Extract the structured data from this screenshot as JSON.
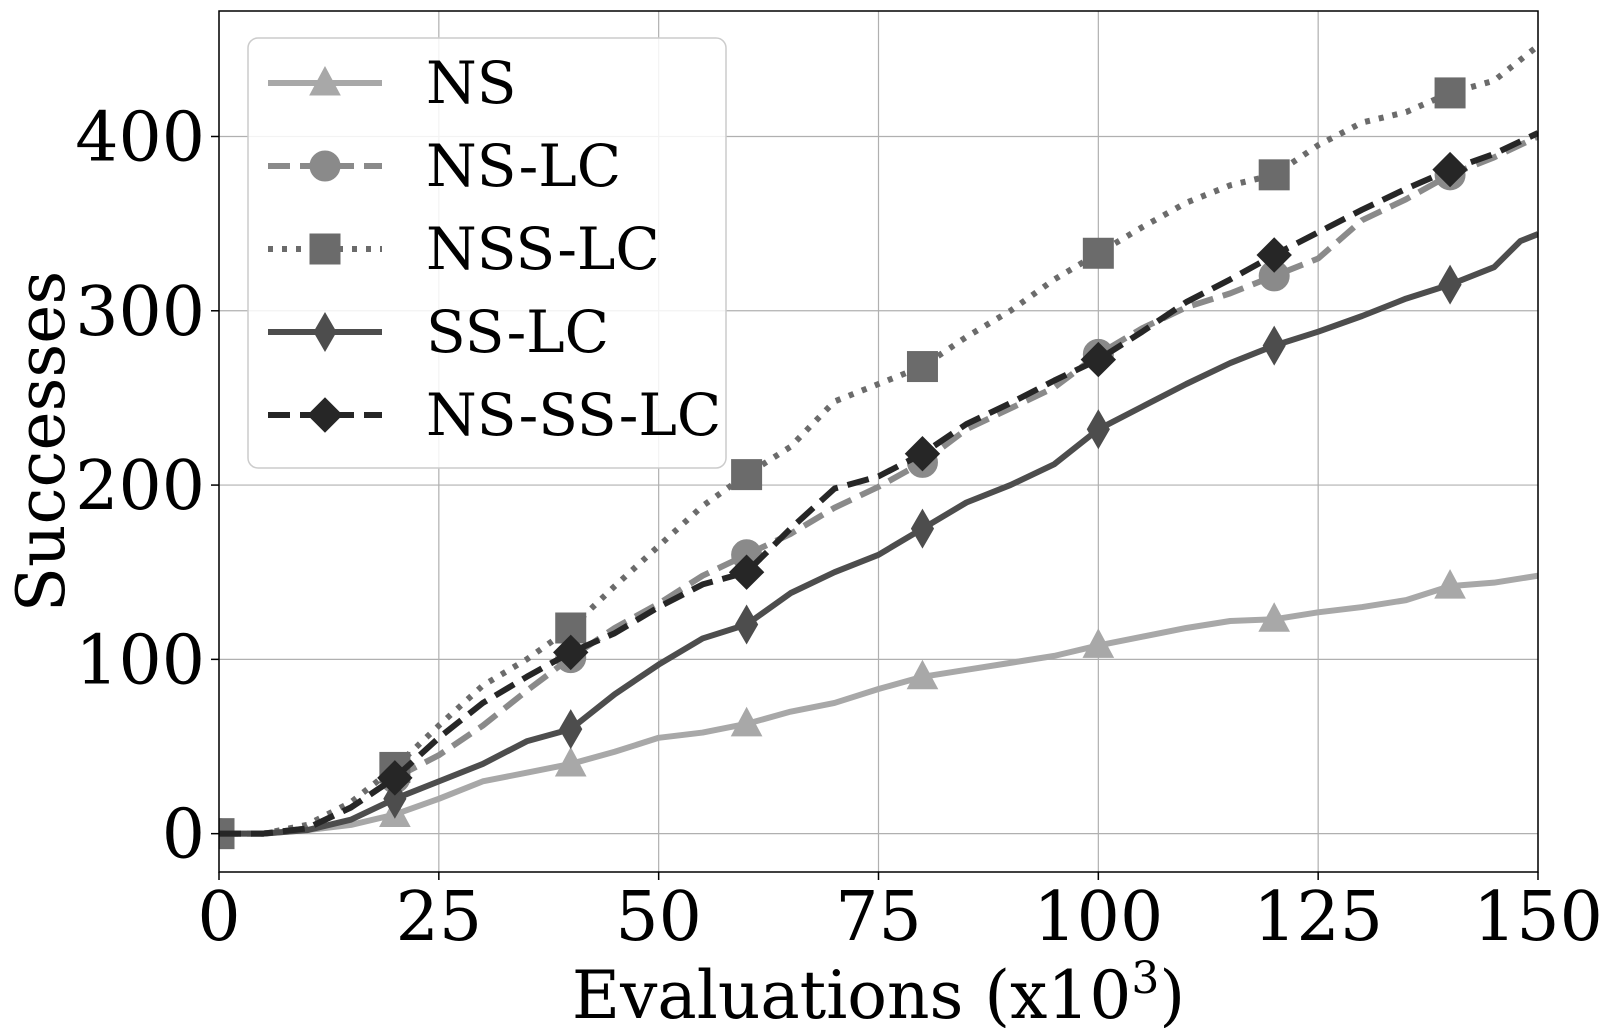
{
  "chart_data": {
    "type": "line",
    "xlabel": "Evaluations (x",
    "xlabel_base": "10",
    "xlabel_exp": "3",
    "xlabel_close": ")",
    "ylabel": "Successes",
    "xlim": [
      0,
      150
    ],
    "ylim": [
      -22,
      472
    ],
    "xticks": [
      "0",
      "25",
      "50",
      "75",
      "100",
      "125",
      "150"
    ],
    "yticks": [
      "0",
      "100",
      "200",
      "300",
      "400"
    ],
    "grid": true,
    "legend_position": "top-left",
    "series": [
      {
        "name": "NS",
        "color": "#a8a8a8",
        "dash": "solid",
        "marker": "triangle",
        "x": [
          0,
          5,
          10,
          15,
          20,
          25,
          30,
          35,
          40,
          45,
          50,
          55,
          60,
          65,
          70,
          75,
          80,
          85,
          90,
          95,
          100,
          105,
          110,
          115,
          120,
          125,
          130,
          135,
          140,
          145,
          150
        ],
        "y": [
          0,
          0,
          2,
          5,
          11,
          20,
          30,
          35,
          40,
          47,
          55,
          58,
          63,
          70,
          75,
          83,
          90,
          94,
          98,
          102,
          108,
          113,
          118,
          122,
          123,
          127,
          130,
          134,
          142,
          144,
          148
        ],
        "markers_x": [
          20,
          40,
          60,
          80,
          100,
          120,
          140
        ],
        "markers_y": [
          11,
          40,
          63,
          90,
          108,
          123,
          142
        ]
      },
      {
        "name": "NS-LC",
        "color": "#8a8a8a",
        "dash": "dashed",
        "marker": "circle",
        "x": [
          0,
          5,
          10,
          15,
          20,
          25,
          30,
          35,
          40,
          45,
          50,
          55,
          60,
          65,
          70,
          75,
          80,
          85,
          90,
          95,
          100,
          105,
          110,
          115,
          120,
          125,
          130,
          135,
          140,
          145,
          150
        ],
        "y": [
          0,
          0,
          3,
          15,
          32,
          45,
          62,
          82,
          101,
          118,
          132,
          148,
          160,
          172,
          187,
          199,
          213,
          232,
          244,
          256,
          275,
          290,
          302,
          310,
          320,
          330,
          352,
          364,
          378,
          388,
          400
        ],
        "markers_x": [
          0,
          20,
          40,
          60,
          80,
          100,
          120,
          140
        ],
        "markers_y": [
          0,
          32,
          101,
          160,
          213,
          275,
          320,
          378
        ]
      },
      {
        "name": "NSS-LC",
        "color": "#6b6b6b",
        "dash": "dotted",
        "marker": "square",
        "x": [
          0,
          5,
          10,
          15,
          20,
          25,
          30,
          35,
          40,
          45,
          50,
          55,
          60,
          65,
          70,
          75,
          80,
          85,
          90,
          95,
          100,
          105,
          110,
          115,
          120,
          125,
          130,
          135,
          140,
          145,
          150
        ],
        "y": [
          0,
          0,
          5,
          18,
          38,
          62,
          85,
          100,
          118,
          142,
          165,
          188,
          206,
          222,
          248,
          258,
          268,
          285,
          300,
          318,
          333,
          348,
          362,
          372,
          378,
          395,
          408,
          414,
          425,
          432,
          452
        ],
        "markers_x": [
          0,
          20,
          40,
          60,
          80,
          100,
          120,
          140
        ],
        "markers_y": [
          0,
          38,
          118,
          206,
          268,
          333,
          378,
          425
        ]
      },
      {
        "name": "SS-LC",
        "color": "#4d4d4d",
        "dash": "solid",
        "marker": "thin_diamond",
        "x": [
          0,
          5,
          10,
          15,
          20,
          25,
          30,
          35,
          40,
          45,
          50,
          55,
          60,
          65,
          70,
          75,
          80,
          85,
          90,
          95,
          100,
          105,
          110,
          115,
          120,
          125,
          130,
          135,
          140,
          145,
          148,
          150
        ],
        "y": [
          0,
          0,
          2,
          8,
          20,
          30,
          40,
          53,
          60,
          80,
          97,
          112,
          120,
          138,
          150,
          160,
          175,
          190,
          200,
          212,
          232,
          245,
          258,
          270,
          280,
          288,
          297,
          307,
          315,
          325,
          340,
          344
        ],
        "markers_x": [
          20,
          40,
          60,
          80,
          100,
          120,
          140
        ],
        "markers_y": [
          20,
          60,
          120,
          175,
          232,
          280,
          315
        ]
      },
      {
        "name": "NS-SS-LC",
        "color": "#262626",
        "dash": "dashed",
        "marker": "diamond",
        "x": [
          0,
          5,
          10,
          15,
          20,
          25,
          30,
          35,
          40,
          45,
          50,
          55,
          60,
          65,
          70,
          75,
          80,
          85,
          90,
          95,
          100,
          105,
          110,
          115,
          120,
          125,
          130,
          135,
          140,
          145,
          150
        ],
        "y": [
          0,
          0,
          3,
          15,
          32,
          55,
          75,
          90,
          104,
          115,
          130,
          143,
          150,
          175,
          198,
          205,
          218,
          235,
          247,
          260,
          272,
          288,
          305,
          318,
          332,
          345,
          358,
          370,
          381,
          390,
          402
        ],
        "markers_x": [
          20,
          40,
          60,
          80,
          100,
          120,
          140
        ],
        "markers_y": [
          32,
          104,
          150,
          218,
          272,
          332,
          381
        ]
      }
    ]
  }
}
